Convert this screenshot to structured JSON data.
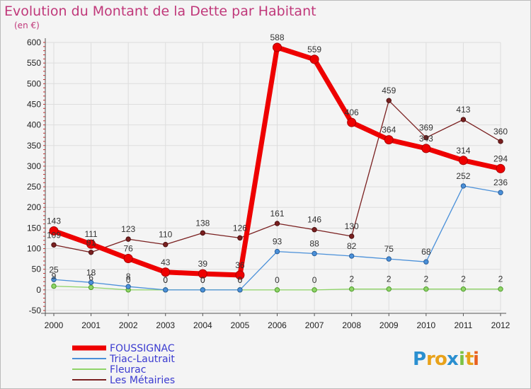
{
  "chart_data": {
    "type": "line",
    "title": "Evolution du Montant de la Dette par Habitant",
    "subtitle": "(en €)",
    "x": [
      "2000",
      "2001",
      "2002",
      "2003",
      "2004",
      "2005",
      "2006",
      "2007",
      "2008",
      "2009",
      "2010",
      "2011",
      "2012"
    ],
    "ylim": [
      -50,
      600
    ],
    "yticks": [
      -50,
      0,
      50,
      100,
      150,
      200,
      250,
      300,
      350,
      400,
      450,
      500,
      550,
      600
    ],
    "grid": true,
    "legend_position": "bottom-left",
    "series": [
      {
        "name": "FOUSSIGNAC",
        "values": [
          143,
          111,
          76,
          43,
          39,
          36,
          588,
          559,
          406,
          364,
          343,
          314,
          294
        ],
        "labels": [
          "143",
          "111",
          "76",
          "43",
          "39",
          "36",
          "588",
          "559",
          "406",
          "364",
          "343",
          "314",
          "294"
        ],
        "color": "#ee0000"
      },
      {
        "name": "Triac-Lautrait",
        "values": [
          25,
          18,
          8,
          0,
          0,
          0,
          93,
          88,
          82,
          75,
          68,
          252,
          236
        ],
        "labels": [
          "25",
          "18",
          "8",
          "0",
          "0",
          "0",
          "93",
          "88",
          "82",
          "75",
          "68",
          "252",
          "236"
        ],
        "color": "#4a90d9"
      },
      {
        "name": "Fleurac",
        "values": [
          9,
          6,
          0,
          0,
          0,
          0,
          0,
          0,
          2,
          2,
          2,
          2,
          2
        ],
        "labels": [
          "9",
          "6",
          "0",
          "0",
          "0",
          "0",
          "0",
          "0",
          "2",
          "2",
          "2",
          "2",
          "2"
        ],
        "color": "#8fd468"
      },
      {
        "name": "Les Métairies",
        "values": [
          109,
          91,
          123,
          110,
          138,
          126,
          161,
          146,
          130,
          459,
          369,
          413,
          360
        ],
        "labels": [
          "109",
          "91",
          "123",
          "110",
          "138",
          "126",
          "161",
          "146",
          "130",
          "459",
          "369",
          "413",
          "360"
        ],
        "color": "#7a2020"
      }
    ]
  },
  "logo": {
    "text": "Proxiti",
    "letters": [
      "P",
      "r",
      "o",
      "x",
      "i",
      "t",
      "i"
    ],
    "colors": [
      "#2a8fd0",
      "#e8a21a",
      "#e8a21a",
      "#2a8fd0",
      "#7cc243",
      "#e8a21a",
      "#e86020"
    ]
  }
}
